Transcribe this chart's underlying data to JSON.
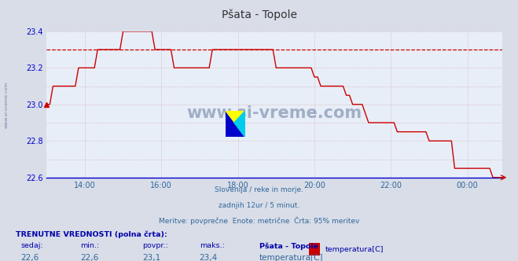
{
  "title": "Pšata - Topole",
  "bg_color": "#d8dde8",
  "plot_bg_color": "#e8eef8",
  "grid_color_minor": "#c8d0e0",
  "line_color": "#cc0000",
  "axis_color": "#0000cc",
  "text_color": "#0000aa",
  "xlabel_color": "#336699",
  "title_color": "#333333",
  "ylim": [
    22.6,
    23.4
  ],
  "yticks": [
    22.6,
    22.8,
    23.0,
    23.2,
    23.4
  ],
  "xtick_labels": [
    "14:00",
    "16:00",
    "18:00",
    "20:00",
    "22:00",
    "00:00"
  ],
  "avg_line_y": 23.3,
  "avg_line_color": "#cc0000",
  "footer_lines": [
    "Slovenija / reke in morje.",
    "zadnjih 12ur / 5 minut.",
    "Meritve: povprečne  Enote: metrične  Črta: 95% meritev"
  ],
  "bottom_label_bold": "TRENUTNE VREDNOSTI (polna črta):",
  "bottom_row1": [
    "sedaj:",
    "min.:",
    "povpr.:",
    "maks.:",
    "Pšata - Topole"
  ],
  "bottom_row2": [
    "22,6",
    "22,6",
    "23,1",
    "23,4",
    "temperatura[C]"
  ],
  "legend_color": "#cc0000",
  "watermark_text": "www.si-vreme.com",
  "watermark_color": "#1a3a6a",
  "side_text": "www.si-vreme.com",
  "x_data": [
    0,
    1,
    2,
    3,
    4,
    5,
    6,
    7,
    8,
    9,
    10,
    11,
    12,
    13,
    14,
    15,
    16,
    17,
    18,
    19,
    20,
    21,
    22,
    23,
    24,
    25,
    26,
    27,
    28,
    29,
    30,
    31,
    32,
    33,
    34,
    35,
    36,
    37,
    38,
    39,
    40,
    41,
    42,
    43,
    44,
    45,
    46,
    47,
    48,
    49,
    50,
    51,
    52,
    53,
    54,
    55,
    56,
    57,
    58,
    59,
    60,
    61,
    62,
    63,
    64,
    65,
    66,
    67,
    68,
    69,
    70,
    71,
    72,
    73,
    74,
    75,
    76,
    77,
    78,
    79,
    80,
    81,
    82,
    83,
    84,
    85,
    86,
    87,
    88,
    89,
    90,
    91,
    92,
    93,
    94,
    95,
    96,
    97,
    98,
    99,
    100,
    101,
    102,
    103,
    104,
    105,
    106,
    107,
    108,
    109,
    110,
    111,
    112,
    113,
    114,
    115,
    116,
    117,
    118,
    119,
    120,
    121,
    122,
    123,
    124,
    125,
    126,
    127,
    128,
    129,
    130,
    131,
    132,
    133,
    134,
    135,
    136,
    137,
    138,
    139,
    140,
    141,
    142,
    143
  ],
  "y_data": [
    23.0,
    23.0,
    23.1,
    23.1,
    23.1,
    23.1,
    23.1,
    23.1,
    23.1,
    23.1,
    23.2,
    23.2,
    23.2,
    23.2,
    23.2,
    23.2,
    23.3,
    23.3,
    23.3,
    23.3,
    23.3,
    23.3,
    23.3,
    23.3,
    23.4,
    23.4,
    23.4,
    23.4,
    23.4,
    23.4,
    23.4,
    23.4,
    23.4,
    23.4,
    23.3,
    23.3,
    23.3,
    23.3,
    23.3,
    23.3,
    23.2,
    23.2,
    23.2,
    23.2,
    23.2,
    23.2,
    23.2,
    23.2,
    23.2,
    23.2,
    23.2,
    23.2,
    23.3,
    23.3,
    23.3,
    23.3,
    23.3,
    23.3,
    23.3,
    23.3,
    23.3,
    23.3,
    23.3,
    23.3,
    23.3,
    23.3,
    23.3,
    23.3,
    23.3,
    23.3,
    23.3,
    23.3,
    23.2,
    23.2,
    23.2,
    23.2,
    23.2,
    23.2,
    23.2,
    23.2,
    23.2,
    23.2,
    23.2,
    23.2,
    23.15,
    23.15,
    23.1,
    23.1,
    23.1,
    23.1,
    23.1,
    23.1,
    23.1,
    23.1,
    23.05,
    23.05,
    23.0,
    23.0,
    23.0,
    23.0,
    22.95,
    22.9,
    22.9,
    22.9,
    22.9,
    22.9,
    22.9,
    22.9,
    22.9,
    22.9,
    22.85,
    22.85,
    22.85,
    22.85,
    22.85,
    22.85,
    22.85,
    22.85,
    22.85,
    22.85,
    22.8,
    22.8,
    22.8,
    22.8,
    22.8,
    22.8,
    22.8,
    22.8,
    22.65,
    22.65,
    22.65,
    22.65,
    22.65,
    22.65,
    22.65,
    22.65,
    22.65,
    22.65,
    22.65,
    22.65,
    22.6,
    22.6,
    22.6,
    22.6
  ]
}
